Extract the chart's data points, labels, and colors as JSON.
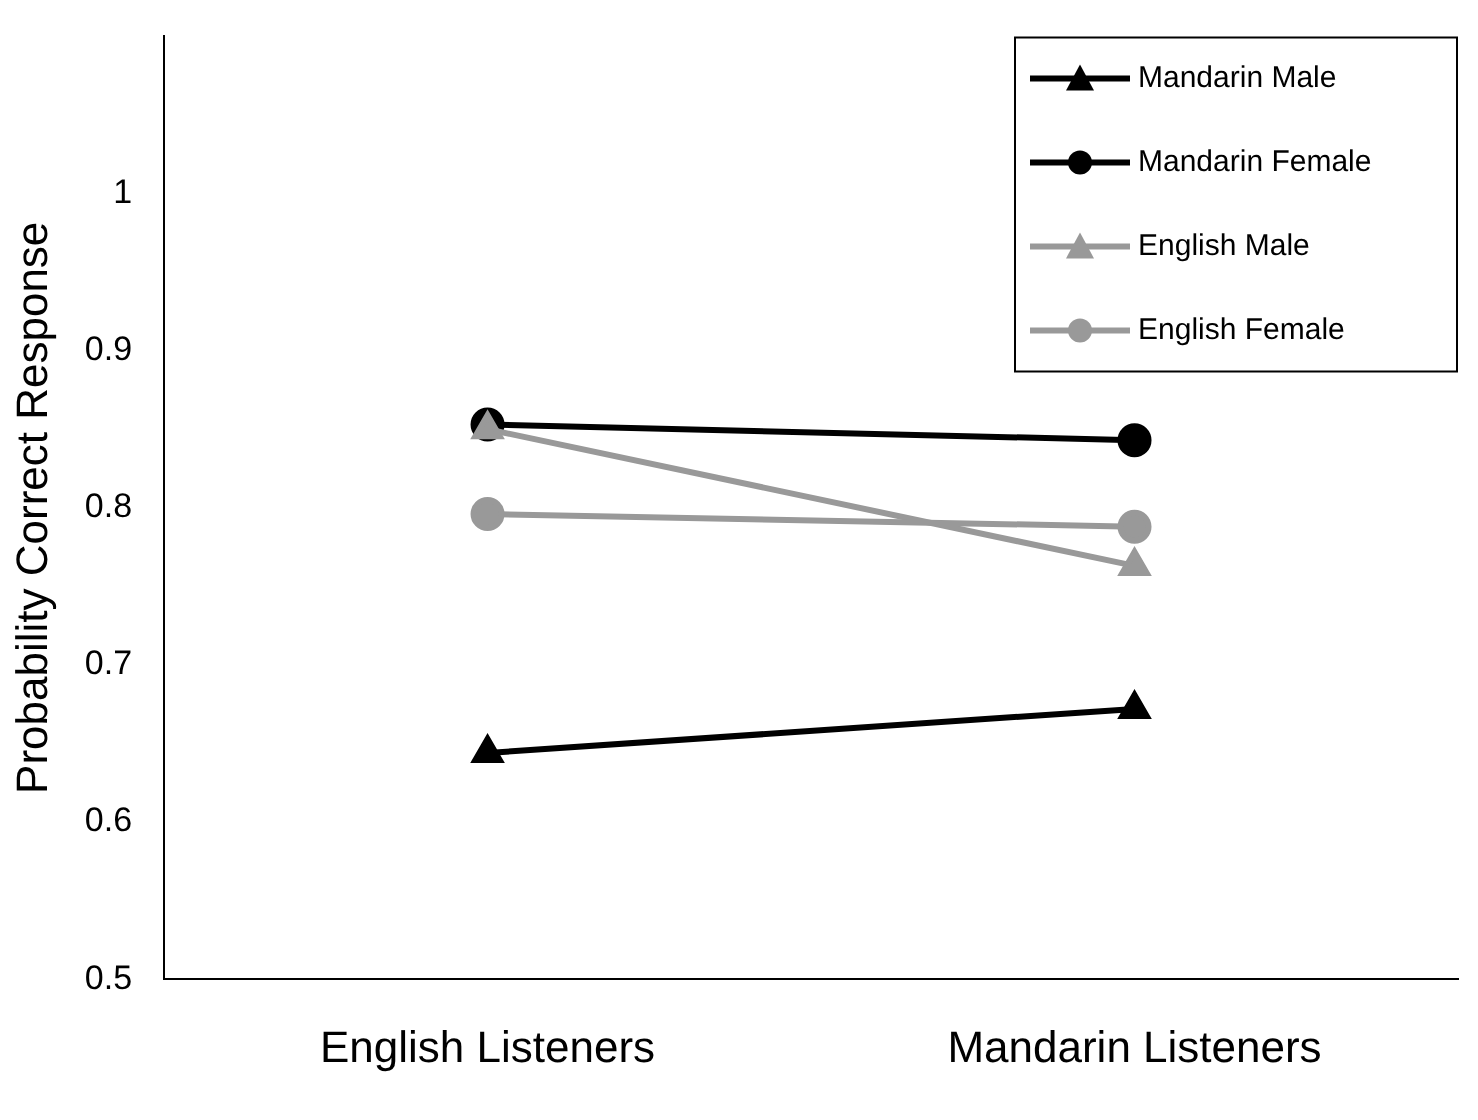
{
  "chart_data": {
    "type": "line",
    "ylabel": "Probability Correct Response",
    "categories": [
      "English Listeners",
      "Mandarin Listeners"
    ],
    "series": [
      {
        "name": "Mandarin Male",
        "color": "#000000",
        "marker": "triangle",
        "values": [
          0.644,
          0.672
        ]
      },
      {
        "name": "Mandarin Female",
        "color": "#000000",
        "marker": "circle",
        "values": [
          0.853,
          0.843
        ]
      },
      {
        "name": "English Male",
        "color": "#999999",
        "marker": "triangle",
        "values": [
          0.85,
          0.763
        ]
      },
      {
        "name": "English Female",
        "color": "#999999",
        "marker": "circle",
        "values": [
          0.796,
          0.788
        ]
      }
    ],
    "ylim": [
      0.5,
      1.1
    ],
    "yticks": [
      0.5,
      0.6,
      0.7,
      0.8,
      0.9,
      1
    ],
    "grid": false,
    "legend": "top right",
    "line_style": "solid"
  }
}
